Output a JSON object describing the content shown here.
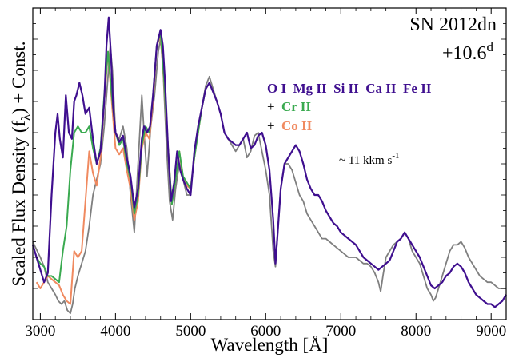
{
  "chart_data": {
    "type": "line",
    "xlabel": "Wavelength [Å]",
    "ylabel_main": "Scaled Flux Density (f",
    "ylabel_sub": "λ",
    "ylabel_tail": ") + Const.",
    "xlim": [
      2900,
      9200
    ],
    "ylim": [
      0,
      1
    ],
    "x_ticks": [
      3000,
      4000,
      5000,
      6000,
      7000,
      8000,
      9000
    ],
    "x_tick_labels": [
      "3000",
      "4000",
      "5000",
      "6000",
      "7000",
      "8000",
      "9000"
    ],
    "grid": false,
    "annotations": {
      "object": "SN 2012dn",
      "phase": "+10.6",
      "phase_sup": "d",
      "ions_main": "O I  Mg II  Si II  Ca II  Fe II",
      "plus1": "+",
      "ion_cr": "Cr II",
      "plus2": "+",
      "ion_co": "Co II",
      "velocity_prefix": "~ 11 kkm s",
      "velocity_sup": "-1"
    },
    "colors": {
      "observed": "#7f7f7f",
      "model_main": "#3f0f8f",
      "model_cr": "#3aaa50",
      "model_co": "#f08a60"
    },
    "series": [
      {
        "key": "observed",
        "x": [
          2900,
          2960,
          3000,
          3050,
          3100,
          3150,
          3200,
          3240,
          3280,
          3320,
          3360,
          3400,
          3430,
          3460,
          3500,
          3550,
          3600,
          3650,
          3700,
          3750,
          3800,
          3850,
          3900,
          3930,
          3960,
          4000,
          4050,
          4100,
          4150,
          4200,
          4250,
          4300,
          4350,
          4380,
          4420,
          4470,
          4520,
          4570,
          4600,
          4630,
          4680,
          4720,
          4760,
          4800,
          4850,
          4900,
          4950,
          5000,
          5050,
          5100,
          5150,
          5200,
          5250,
          5300,
          5350,
          5400,
          5450,
          5500,
          5550,
          5600,
          5650,
          5700,
          5750,
          5800,
          5850,
          5900,
          5950,
          6000,
          6050,
          6100,
          6130,
          6160,
          6200,
          6250,
          6300,
          6350,
          6400,
          6450,
          6500,
          6550,
          6600,
          6650,
          6700,
          6750,
          6800,
          6850,
          6900,
          6950,
          7000,
          7050,
          7100,
          7150,
          7200,
          7250,
          7300,
          7350,
          7400,
          7450,
          7500,
          7530,
          7560,
          7600,
          7650,
          7700,
          7750,
          7800,
          7850,
          7900,
          7950,
          8000,
          8050,
          8100,
          8150,
          8200,
          8230,
          8260,
          8300,
          8350,
          8400,
          8450,
          8500,
          8550,
          8600,
          8650,
          8700,
          8750,
          8800,
          8850,
          8900,
          8950,
          9000,
          9050,
          9100,
          9150,
          9200
        ],
        "y": [
          0.25,
          0.22,
          0.2,
          0.17,
          0.12,
          0.1,
          0.08,
          0.06,
          0.05,
          0.06,
          0.03,
          0.02,
          0.05,
          0.1,
          0.14,
          0.18,
          0.22,
          0.3,
          0.4,
          0.45,
          0.5,
          0.62,
          0.78,
          0.88,
          0.8,
          0.6,
          0.58,
          0.62,
          0.55,
          0.4,
          0.28,
          0.5,
          0.72,
          0.6,
          0.46,
          0.62,
          0.72,
          0.86,
          0.9,
          0.82,
          0.55,
          0.38,
          0.32,
          0.42,
          0.5,
          0.45,
          0.4,
          0.4,
          0.54,
          0.62,
          0.68,
          0.75,
          0.78,
          0.74,
          0.7,
          0.66,
          0.6,
          0.58,
          0.56,
          0.54,
          0.56,
          0.58,
          0.52,
          0.54,
          0.59,
          0.6,
          0.54,
          0.48,
          0.4,
          0.22,
          0.17,
          0.28,
          0.42,
          0.5,
          0.5,
          0.48,
          0.44,
          0.4,
          0.38,
          0.34,
          0.32,
          0.3,
          0.28,
          0.26,
          0.26,
          0.25,
          0.24,
          0.23,
          0.22,
          0.21,
          0.2,
          0.2,
          0.2,
          0.19,
          0.18,
          0.18,
          0.17,
          0.15,
          0.12,
          0.09,
          0.14,
          0.2,
          0.22,
          0.24,
          0.25,
          0.26,
          0.28,
          0.26,
          0.22,
          0.2,
          0.18,
          0.14,
          0.1,
          0.08,
          0.06,
          0.07,
          0.1,
          0.14,
          0.18,
          0.22,
          0.24,
          0.24,
          0.25,
          0.23,
          0.2,
          0.18,
          0.16,
          0.14,
          0.13,
          0.12,
          0.12,
          0.11,
          0.1,
          0.1,
          0.1
        ]
      },
      {
        "key": "model_co",
        "x": [
          2950,
          3000,
          3050,
          3100,
          3150,
          3200,
          3250,
          3300,
          3350,
          3400,
          3450,
          3500,
          3550,
          3600,
          3650,
          3700,
          3750,
          3800,
          3850,
          3900,
          3950,
          4000,
          4050,
          4100,
          4150,
          4200,
          4250,
          4300,
          4350,
          4400,
          4450,
          4500,
          4550,
          4600,
          4650,
          4700,
          4750,
          4800,
          4850,
          4900,
          4950,
          5000,
          5050,
          5100,
          5150,
          5200
        ],
        "y": [
          0.12,
          0.1,
          0.12,
          0.14,
          0.13,
          0.12,
          0.11,
          0.08,
          0.06,
          0.05,
          0.22,
          0.2,
          0.22,
          0.38,
          0.54,
          0.47,
          0.43,
          0.52,
          0.7,
          0.86,
          0.7,
          0.55,
          0.53,
          0.55,
          0.48,
          0.42,
          0.32,
          0.38,
          0.55,
          0.6,
          0.58,
          0.7,
          0.88,
          0.91,
          0.75,
          0.55,
          0.37,
          0.45,
          0.54,
          0.45,
          0.43,
          0.42,
          0.52,
          0.6,
          0.68,
          0.74
        ]
      },
      {
        "key": "model_cr",
        "x": [
          2950,
          3000,
          3050,
          3100,
          3150,
          3200,
          3250,
          3300,
          3350,
          3400,
          3450,
          3500,
          3550,
          3600,
          3650,
          3700,
          3750,
          3800,
          3850,
          3900,
          3950,
          4000,
          4050,
          4100,
          4150,
          4200,
          4250,
          4300,
          4350,
          4400,
          4450,
          4500,
          4550,
          4600,
          4650,
          4700,
          4750,
          4800,
          4850,
          4900,
          4950,
          5000,
          5050,
          5100,
          5150,
          5200
        ],
        "y": [
          0.2,
          0.18,
          0.17,
          0.14,
          0.14,
          0.13,
          0.12,
          0.22,
          0.3,
          0.48,
          0.6,
          0.62,
          0.6,
          0.6,
          0.62,
          0.55,
          0.5,
          0.55,
          0.72,
          0.86,
          0.72,
          0.6,
          0.56,
          0.58,
          0.5,
          0.45,
          0.34,
          0.4,
          0.56,
          0.62,
          0.6,
          0.72,
          0.88,
          0.92,
          0.76,
          0.55,
          0.37,
          0.45,
          0.54,
          0.46,
          0.44,
          0.42,
          0.52,
          0.6,
          0.68,
          0.74
        ]
      },
      {
        "key": "model_main",
        "x": [
          2900,
          2950,
          3000,
          3050,
          3100,
          3150,
          3200,
          3230,
          3260,
          3300,
          3340,
          3380,
          3420,
          3450,
          3480,
          3520,
          3560,
          3600,
          3650,
          3700,
          3750,
          3800,
          3850,
          3880,
          3910,
          3940,
          3970,
          4000,
          4050,
          4100,
          4150,
          4200,
          4250,
          4300,
          4350,
          4380,
          4420,
          4460,
          4500,
          4550,
          4600,
          4630,
          4660,
          4700,
          4740,
          4780,
          4820,
          4860,
          4900,
          4950,
          5000,
          5050,
          5100,
          5150,
          5200,
          5250,
          5300,
          5350,
          5400,
          5450,
          5500,
          5550,
          5600,
          5650,
          5700,
          5750,
          5800,
          5850,
          5900,
          5950,
          6000,
          6050,
          6100,
          6130,
          6160,
          6200,
          6250,
          6300,
          6350,
          6400,
          6450,
          6500,
          6550,
          6600,
          6650,
          6700,
          6750,
          6800,
          6850,
          6900,
          6950,
          7000,
          7050,
          7100,
          7150,
          7200,
          7250,
          7300,
          7350,
          7400,
          7450,
          7500,
          7550,
          7600,
          7650,
          7700,
          7750,
          7800,
          7850,
          7900,
          7950,
          8000,
          8050,
          8100,
          8150,
          8200,
          8250,
          8300,
          8350,
          8400,
          8450,
          8500,
          8550,
          8600,
          8650,
          8700,
          8750,
          8800,
          8850,
          8900,
          8950,
          9000,
          9050,
          9100,
          9150,
          9200
        ],
        "y": [
          0.24,
          0.2,
          0.16,
          0.12,
          0.15,
          0.4,
          0.6,
          0.66,
          0.58,
          0.52,
          0.72,
          0.6,
          0.58,
          0.7,
          0.72,
          0.76,
          0.72,
          0.66,
          0.68,
          0.58,
          0.5,
          0.54,
          0.7,
          0.88,
          0.97,
          0.85,
          0.68,
          0.6,
          0.57,
          0.59,
          0.52,
          0.46,
          0.36,
          0.42,
          0.58,
          0.62,
          0.6,
          0.62,
          0.72,
          0.88,
          0.93,
          0.88,
          0.76,
          0.55,
          0.38,
          0.44,
          0.54,
          0.48,
          0.45,
          0.42,
          0.4,
          0.54,
          0.62,
          0.68,
          0.74,
          0.76,
          0.73,
          0.7,
          0.66,
          0.6,
          0.58,
          0.57,
          0.56,
          0.56,
          0.58,
          0.6,
          0.55,
          0.56,
          0.59,
          0.6,
          0.56,
          0.48,
          0.32,
          0.18,
          0.28,
          0.42,
          0.5,
          0.52,
          0.54,
          0.56,
          0.54,
          0.5,
          0.45,
          0.42,
          0.4,
          0.4,
          0.38,
          0.35,
          0.33,
          0.31,
          0.3,
          0.28,
          0.27,
          0.26,
          0.25,
          0.24,
          0.22,
          0.2,
          0.19,
          0.18,
          0.17,
          0.16,
          0.17,
          0.18,
          0.19,
          0.22,
          0.25,
          0.26,
          0.28,
          0.26,
          0.24,
          0.22,
          0.2,
          0.17,
          0.14,
          0.11,
          0.1,
          0.11,
          0.12,
          0.14,
          0.15,
          0.17,
          0.18,
          0.17,
          0.15,
          0.12,
          0.1,
          0.08,
          0.07,
          0.06,
          0.05,
          0.05,
          0.04,
          0.05,
          0.06,
          0.08
        ]
      }
    ]
  }
}
